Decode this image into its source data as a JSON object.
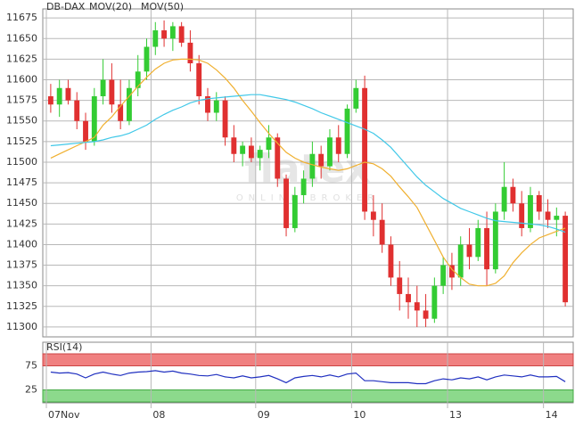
{
  "chart_data": [
    {
      "type": "candlestick",
      "title": "DB-DAX",
      "title_color": "#e03030",
      "watermark": "flatex",
      "watermark_sub": "ONLINE BROKER",
      "categories": [
        "07Nov",
        null,
        null,
        null,
        null,
        null,
        null,
        null,
        null,
        null,
        null,
        null,
        "08",
        null,
        null,
        null,
        null,
        null,
        null,
        null,
        null,
        null,
        null,
        null,
        "09",
        null,
        null,
        null,
        null,
        null,
        null,
        null,
        null,
        null,
        null,
        "10",
        null,
        null,
        null,
        null,
        null,
        null,
        null,
        null,
        null,
        null,
        "13",
        null,
        null,
        null,
        null,
        null,
        null,
        null,
        null,
        null,
        null,
        "14",
        null,
        null
      ],
      "open": [
        11580,
        11570,
        11590,
        11575,
        11550,
        11525,
        11580,
        11600,
        11570,
        11550,
        11590,
        11610,
        11640,
        11660,
        11650,
        11665,
        11645,
        11620,
        11580,
        11560,
        11575,
        11530,
        11510,
        11520,
        11505,
        11515,
        11530,
        11480,
        11420,
        11460,
        11480,
        11510,
        11495,
        11530,
        11510,
        11565,
        11590,
        11440,
        11430,
        11400,
        11360,
        11340,
        11330,
        11320,
        11310,
        11350,
        11375,
        11360,
        11400,
        11385,
        11420,
        11370,
        11440,
        11470,
        11450,
        11420,
        11460,
        11440,
        11430,
        11435
      ],
      "high": [
        11595,
        11600,
        11600,
        11585,
        11560,
        11590,
        11625,
        11620,
        11600,
        11600,
        11630,
        11650,
        11670,
        11672,
        11670,
        11670,
        11660,
        11630,
        11590,
        11585,
        11580,
        11545,
        11525,
        11530,
        11520,
        11545,
        11535,
        11485,
        11470,
        11490,
        11525,
        11520,
        11540,
        11545,
        11570,
        11600,
        11605,
        11460,
        11450,
        11410,
        11380,
        11360,
        11350,
        11340,
        11360,
        11385,
        11390,
        11410,
        11420,
        11430,
        11440,
        11450,
        11500,
        11480,
        11465,
        11470,
        11465,
        11455,
        11445,
        11440
      ],
      "low": [
        11560,
        11555,
        11570,
        11540,
        11515,
        11520,
        11570,
        11560,
        11540,
        11545,
        11580,
        11600,
        11630,
        11640,
        11635,
        11640,
        11610,
        11570,
        11550,
        11550,
        11520,
        11500,
        11495,
        11500,
        11490,
        11505,
        11470,
        11410,
        11415,
        11450,
        11470,
        11480,
        11490,
        11500,
        11505,
        11560,
        11430,
        11410,
        11390,
        11350,
        11320,
        11310,
        11300,
        11300,
        11305,
        11340,
        11345,
        11350,
        11370,
        11380,
        11350,
        11365,
        11430,
        11440,
        11410,
        11415,
        11430,
        11420,
        11410,
        11325
      ],
      "close": [
        11570,
        11590,
        11575,
        11550,
        11525,
        11580,
        11600,
        11570,
        11550,
        11590,
        11610,
        11640,
        11660,
        11650,
        11665,
        11645,
        11620,
        11580,
        11560,
        11575,
        11530,
        11510,
        11520,
        11505,
        11515,
        11530,
        11480,
        11420,
        11460,
        11480,
        11510,
        11495,
        11530,
        11510,
        11565,
        11590,
        11440,
        11430,
        11400,
        11360,
        11340,
        11330,
        11320,
        11310,
        11350,
        11375,
        11360,
        11400,
        11385,
        11420,
        11370,
        11440,
        11470,
        11450,
        11420,
        11460,
        11440,
        11430,
        11435,
        11330
      ],
      "up_color": "#33cc33",
      "down_color": "#e03030",
      "series": [
        {
          "name": "MOV(20)",
          "color": "#f0b030",
          "values": [
            11505,
            11510,
            11515,
            11520,
            11525,
            11530,
            11545,
            11555,
            11568,
            11580,
            11592,
            11603,
            11613,
            11620,
            11624,
            11625,
            11625,
            11624,
            11620,
            11612,
            11602,
            11590,
            11575,
            11562,
            11548,
            11535,
            11523,
            11512,
            11505,
            11500,
            11497,
            11494,
            11492,
            11490,
            11492,
            11496,
            11500,
            11498,
            11492,
            11483,
            11470,
            11458,
            11445,
            11425,
            11405,
            11385,
            11370,
            11360,
            11352,
            11350,
            11350,
            11353,
            11362,
            11378,
            11390,
            11400,
            11408,
            11412,
            11416,
            11420
          ]
        },
        {
          "name": "MOV(50)",
          "color": "#40c8e8",
          "values": [
            11520,
            11521,
            11522,
            11523,
            11524,
            11525,
            11527,
            11530,
            11532,
            11535,
            11540,
            11545,
            11552,
            11558,
            11563,
            11567,
            11572,
            11575,
            11577,
            11578,
            11579,
            11580,
            11581,
            11582,
            11582,
            11580,
            11578,
            11576,
            11573,
            11569,
            11565,
            11560,
            11556,
            11552,
            11548,
            11544,
            11540,
            11535,
            11527,
            11518,
            11506,
            11494,
            11482,
            11472,
            11464,
            11456,
            11450,
            11444,
            11440,
            11436,
            11432,
            11429,
            11428,
            11427,
            11426,
            11425,
            11424,
            11422,
            11419,
            11415
          ]
        }
      ],
      "ylim": [
        11288,
        11686
      ],
      "yticks": [
        11300,
        11325,
        11350,
        11375,
        11400,
        11425,
        11450,
        11475,
        11500,
        11525,
        11550,
        11575,
        11600,
        11625,
        11650,
        11675
      ],
      "grid": true
    },
    {
      "type": "line",
      "series": [
        {
          "name": "RSI(14)",
          "color": "#2030c0",
          "values": [
            62,
            60,
            61,
            58,
            50,
            58,
            62,
            58,
            55,
            60,
            62,
            63,
            65,
            62,
            64,
            60,
            58,
            55,
            54,
            57,
            52,
            50,
            54,
            50,
            52,
            55,
            48,
            40,
            50,
            53,
            55,
            52,
            56,
            52,
            58,
            60,
            44,
            44,
            42,
            40,
            40,
            40,
            38,
            38,
            44,
            48,
            46,
            50,
            48,
            52,
            46,
            52,
            56,
            54,
            52,
            56,
            52,
            52,
            53,
            42
          ]
        }
      ],
      "ylim": [
        0,
        100
      ],
      "yticks": [
        25,
        75
      ],
      "band_colors": [
        "#8cd98c",
        "#f08080"
      ]
    }
  ]
}
